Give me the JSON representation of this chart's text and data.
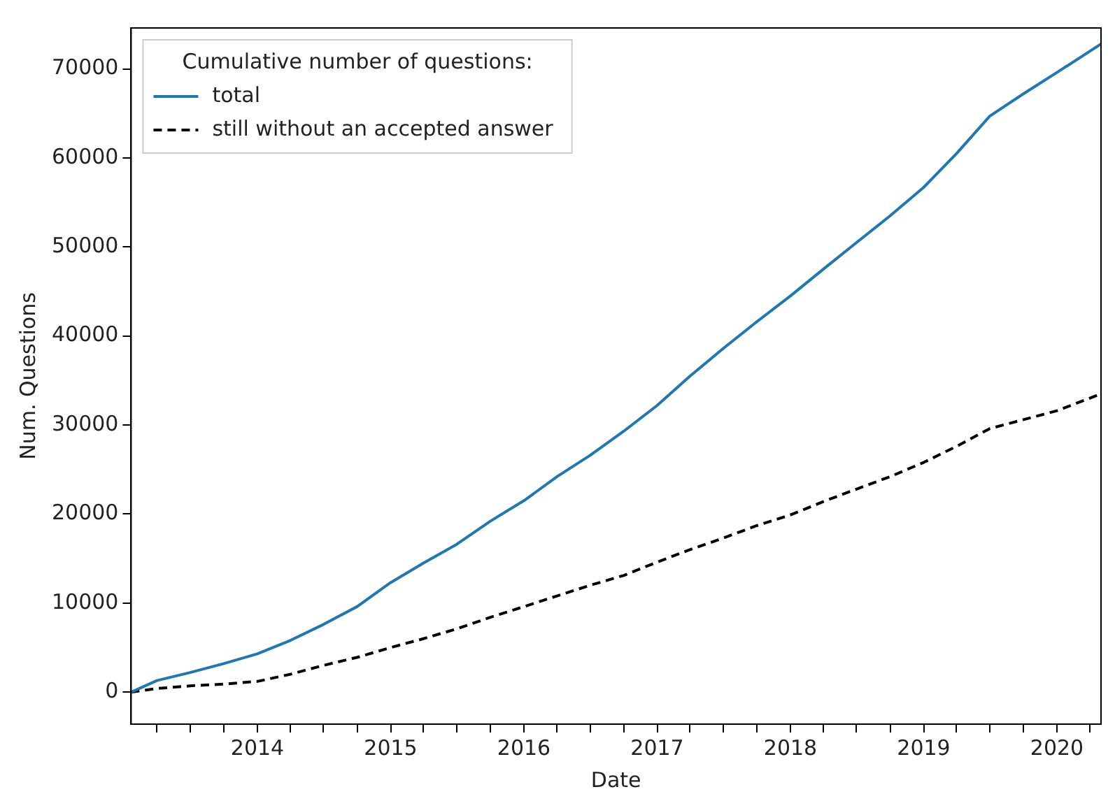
{
  "chart_data": {
    "type": "line",
    "xlabel": "Date",
    "ylabel": "Num. Questions",
    "legend_title": "Cumulative number of questions:",
    "legend": "top left",
    "grid": false,
    "x": [
      "2013-01-20",
      "2013-04",
      "2013-07",
      "2013-10",
      "2014-01",
      "2014-04",
      "2014-07",
      "2014-10",
      "2015-01",
      "2015-04",
      "2015-07",
      "2015-10",
      "2016-01",
      "2016-04",
      "2016-07",
      "2016-10",
      "2017-01",
      "2017-04",
      "2017-07",
      "2017-10",
      "2018-01",
      "2018-04",
      "2018-07",
      "2018-10",
      "2019-01",
      "2019-04",
      "2019-07",
      "2019-10",
      "2020-01",
      "2020-05"
    ],
    "series": [
      {
        "name": "total",
        "color": "#1f77b4",
        "line_style": "solid",
        "values": [
          0,
          1300,
          2200,
          3200,
          4300,
          5800,
          7600,
          9600,
          12300,
          14500,
          16600,
          19200,
          21500,
          24200,
          26600,
          29300,
          32200,
          35500,
          38600,
          41600,
          44500,
          47500,
          50500,
          53500,
          56700,
          60500,
          64700,
          67200,
          69600,
          72800
        ]
      },
      {
        "name": "still without an accepted answer",
        "color": "#000000",
        "line_style": "dashed",
        "values": [
          0,
          400,
          700,
          900,
          1200,
          2000,
          3000,
          3900,
          5000,
          6000,
          7100,
          8400,
          9600,
          10800,
          12000,
          13100,
          14600,
          16000,
          17300,
          18700,
          19900,
          21400,
          22800,
          24200,
          25800,
          27600,
          29600,
          30600,
          31600,
          33500
        ]
      }
    ],
    "xlim": [
      "2013-01-20",
      "2020-05"
    ],
    "xticks": [
      {
        "value": "2013-04",
        "label": null
      },
      {
        "value": "2013-07",
        "label": null
      },
      {
        "value": "2013-10",
        "label": null
      },
      "2014",
      {
        "value": "2014-04",
        "label": null
      },
      {
        "value": "2014-07",
        "label": null
      },
      {
        "value": "2014-10",
        "label": null
      },
      "2015",
      {
        "value": "2015-04",
        "label": null
      },
      {
        "value": "2015-07",
        "label": null
      },
      {
        "value": "2015-10",
        "label": null
      },
      "2016",
      {
        "value": "2016-04",
        "label": null
      },
      {
        "value": "2016-07",
        "label": null
      },
      {
        "value": "2016-10",
        "label": null
      },
      "2017",
      {
        "value": "2017-04",
        "label": null
      },
      {
        "value": "2017-07",
        "label": null
      },
      {
        "value": "2017-10",
        "label": null
      },
      "2018",
      {
        "value": "2018-04",
        "label": null
      },
      {
        "value": "2018-07",
        "label": null
      },
      {
        "value": "2018-10",
        "label": null
      },
      "2019",
      {
        "value": "2019-04",
        "label": null
      },
      {
        "value": "2019-07",
        "label": null
      },
      {
        "value": "2019-10",
        "label": null
      },
      "2020",
      {
        "value": "2020-04",
        "label": null
      }
    ],
    "ylim": [
      -3600,
      74600
    ],
    "yticks": [
      0,
      10000,
      20000,
      30000,
      40000,
      50000,
      60000,
      70000
    ]
  }
}
